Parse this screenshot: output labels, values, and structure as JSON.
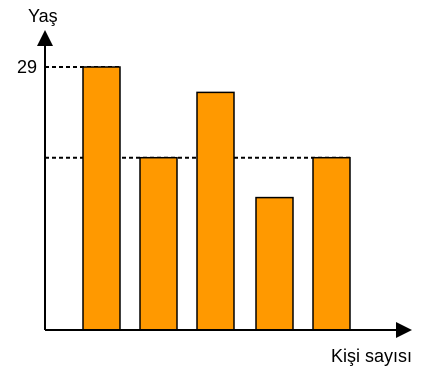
{
  "chart_data": {
    "type": "bar",
    "title": "",
    "xlabel": "Kişi sayısı",
    "ylabel": "Yaş",
    "ylim": [
      0,
      29
    ],
    "y_tick_labels": [
      {
        "value": 29,
        "label": "29"
      }
    ],
    "reference_lines": [
      {
        "value": 29,
        "style": "dashed"
      },
      {
        "value": 19,
        "style": "dashed"
      }
    ],
    "grid": false,
    "legend": "none",
    "bar_color": "#ff9900",
    "values": [
      29,
      19,
      26.2,
      14.6,
      19
    ]
  }
}
